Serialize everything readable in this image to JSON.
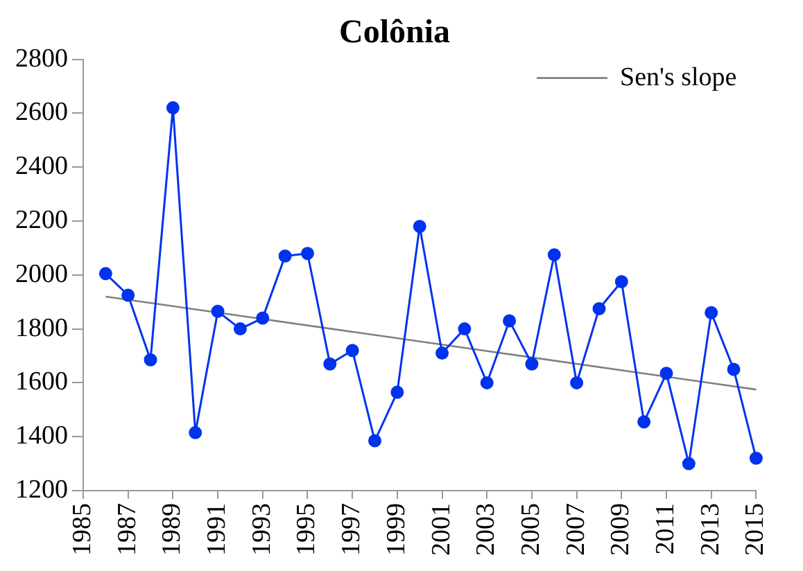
{
  "chart_data": {
    "type": "line",
    "title": "Colônia",
    "xlim": [
      1985,
      2015
    ],
    "xticks": [
      1985,
      1987,
      1989,
      1991,
      1993,
      1995,
      1997,
      1999,
      2001,
      2003,
      2005,
      2007,
      2009,
      2011,
      2013,
      2015
    ],
    "ylim": [
      1200,
      2800
    ],
    "yticks": [
      1200,
      1400,
      1600,
      1800,
      2000,
      2200,
      2400,
      2600,
      2800
    ],
    "grid": false,
    "legend": "top right",
    "series": [
      {
        "color": "#0033ee",
        "marker": "circle",
        "x": [
          1986,
          1987,
          1988,
          1989,
          1990,
          1991,
          1992,
          1993,
          1994,
          1995,
          1996,
          1997,
          1998,
          1999,
          2000,
          2001,
          2002,
          2003,
          2004,
          2005,
          2006,
          2007,
          2008,
          2009,
          2010,
          2011,
          2012,
          2013,
          2014,
          2015
        ],
        "values": [
          2005,
          1925,
          1685,
          2620,
          1415,
          1865,
          1800,
          1840,
          2070,
          2080,
          1670,
          1720,
          1385,
          1565,
          2180,
          1710,
          1800,
          1600,
          1830,
          1670,
          2075,
          1600,
          1875,
          1975,
          1455,
          1635,
          1300,
          1860,
          1650,
          1320
        ]
      },
      {
        "name": "Sen's slope",
        "color": "#808080",
        "marker": "none",
        "x": [
          1986,
          2015
        ],
        "values": [
          1920,
          1575
        ]
      }
    ]
  }
}
